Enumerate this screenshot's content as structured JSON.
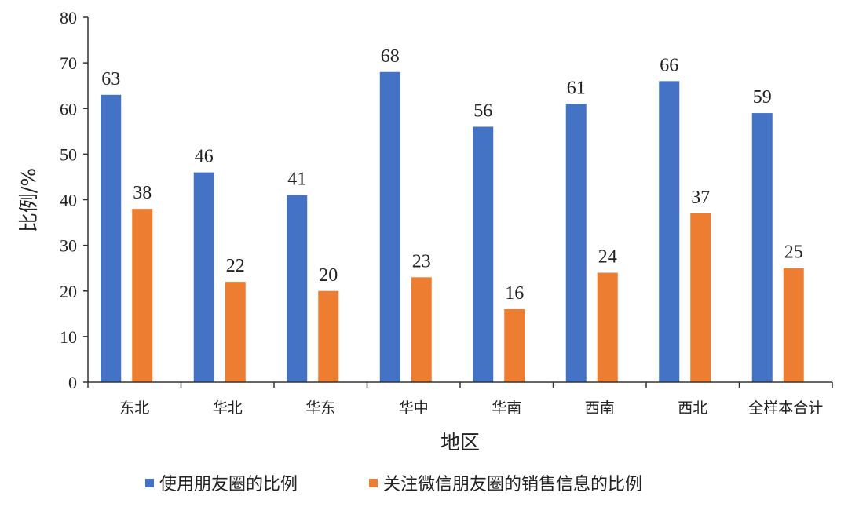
{
  "chart_data": {
    "type": "bar",
    "categories": [
      "东北",
      "华北",
      "华东",
      "华中",
      "华南",
      "西南",
      "西北",
      "全样本合计"
    ],
    "series": [
      {
        "name": "使用朋友圈的比例",
        "values": [
          63,
          46,
          41,
          68,
          56,
          61,
          66,
          59
        ],
        "color": "#4472C4"
      },
      {
        "name": "关注微信朋友圈的销售信息的比例",
        "values": [
          38,
          22,
          20,
          23,
          16,
          24,
          37,
          25
        ],
        "color": "#ED7D31"
      }
    ],
    "xlabel": "地区",
    "ylabel": "比例/%",
    "ylim": [
      0,
      80
    ],
    "yticks": [
      0,
      10,
      20,
      30,
      40,
      50,
      60,
      70,
      80
    ],
    "grid": false,
    "legend_position": "bottom"
  }
}
